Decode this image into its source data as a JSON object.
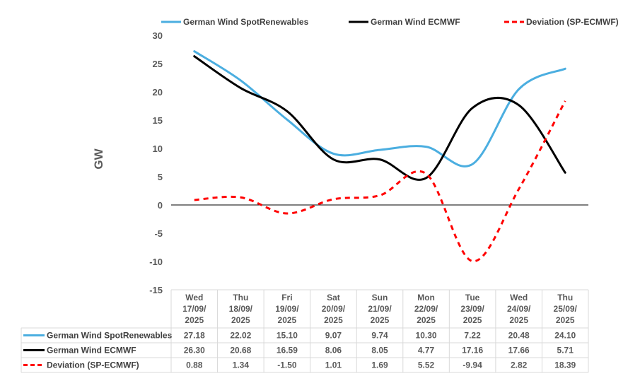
{
  "chart_data": {
    "type": "line",
    "title": "",
    "xlabel": "",
    "ylabel": "GW",
    "ylim": [
      -15,
      30
    ],
    "yticks": [
      "30",
      "25",
      "20",
      "15",
      "10",
      "5",
      "0",
      "-5",
      "-10",
      "-15"
    ],
    "ytick_values": [
      30,
      25,
      20,
      15,
      10,
      5,
      0,
      -5,
      -10,
      -15
    ],
    "categories": [
      [
        "Wed",
        "17/09/",
        "2025"
      ],
      [
        "Thu",
        "18/09/",
        "2025"
      ],
      [
        "Fri",
        "19/09/",
        "2025"
      ],
      [
        "Sat",
        "20/09/",
        "2025"
      ],
      [
        "Sun",
        "21/09/",
        "2025"
      ],
      [
        "Mon",
        "22/09/",
        "2025"
      ],
      [
        "Tue",
        "23/09/",
        "2025"
      ],
      [
        "Wed",
        "24/09/",
        "2025"
      ],
      [
        "Thu",
        "25/09/",
        "2025"
      ]
    ],
    "legend_position": "top",
    "series": [
      {
        "name": "German Wind SpotRenewables",
        "color": "#4baee0",
        "dash": false,
        "values": [
          27.18,
          22.02,
          15.1,
          9.07,
          9.74,
          10.3,
          7.22,
          20.48,
          24.1
        ],
        "labels": [
          "27.18",
          "22.02",
          "15.10",
          "9.07",
          "9.74",
          "10.30",
          "7.22",
          "20.48",
          "24.10"
        ]
      },
      {
        "name": "German Wind ECMWF",
        "color": "#000000",
        "dash": false,
        "values": [
          26.3,
          20.68,
          16.59,
          8.06,
          8.05,
          4.77,
          17.16,
          17.66,
          5.71
        ],
        "labels": [
          "26.30",
          "20.68",
          "16.59",
          "8.06",
          "8.05",
          "4.77",
          "17.16",
          "17.66",
          "5.71"
        ]
      },
      {
        "name": "Deviation (SP-ECMWF)",
        "color": "#ff0000",
        "dash": true,
        "values": [
          0.88,
          1.34,
          -1.5,
          1.01,
          1.69,
          5.52,
          -9.94,
          2.82,
          18.39
        ],
        "labels": [
          "0.88",
          "1.34",
          "-1.50",
          "1.01",
          "1.69",
          "5.52",
          "-9.94",
          "2.82",
          "18.39"
        ]
      }
    ]
  }
}
